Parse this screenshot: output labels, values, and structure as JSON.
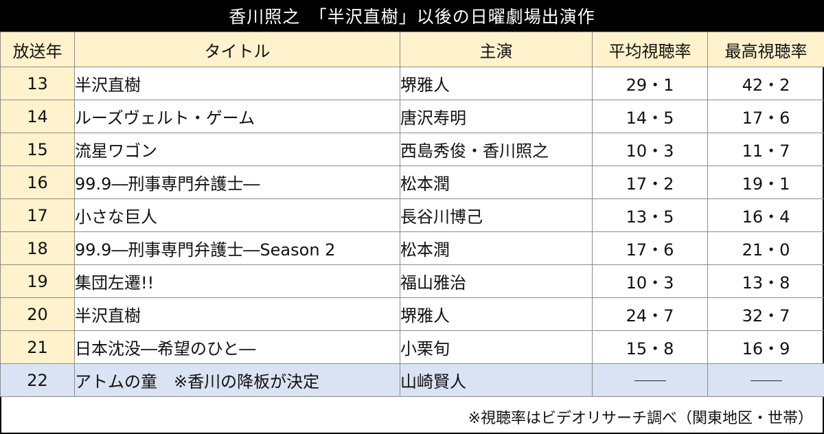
{
  "header": {
    "title": "香川照之　「半沢直樹」以後の日曜劇場出演作"
  },
  "table": {
    "columns": [
      "放送年",
      "タイトル",
      "主演",
      "平均視聴率",
      "最高視聴率"
    ],
    "rows": [
      {
        "year": "13",
        "title": "半沢直樹",
        "lead": "堺雅人",
        "avg": "29・1",
        "max": "42・2"
      },
      {
        "year": "14",
        "title": "ルーズヴェルト・ゲーム",
        "lead": "唐沢寿明",
        "avg": "14・5",
        "max": "17・6"
      },
      {
        "year": "15",
        "title": "流星ワゴン",
        "lead": "西島秀俊・香川照之",
        "avg": "10・3",
        "max": "11・7"
      },
      {
        "year": "16",
        "title": "99.9―刑事専門弁護士―",
        "lead": "松本潤",
        "avg": "17・2",
        "max": "19・1"
      },
      {
        "year": "17",
        "title": "小さな巨人",
        "lead": "長谷川博己",
        "avg": "13・5",
        "max": "16・4"
      },
      {
        "year": "18",
        "title": "99.9―刑事専門弁護士―Season 2",
        "lead": "松本潤",
        "avg": "17・6",
        "max": "21・0"
      },
      {
        "year": "19",
        "title": "集団左遷!!",
        "lead": "福山雅治",
        "avg": "10・3",
        "max": "13・8"
      },
      {
        "year": "20",
        "title": "半沢直樹",
        "lead": "堺雅人",
        "avg": "24・7",
        "max": "32・7"
      },
      {
        "year": "21",
        "title": "日本沈没―希望のひと―",
        "lead": "小栗旬",
        "avg": "15・8",
        "max": "16・9"
      },
      {
        "year": "22",
        "title": "アトムの童　※香川の降板が決定",
        "lead": "山崎賢人",
        "avg": "",
        "max": ""
      }
    ]
  },
  "footnote": "※視聴率はビデオリサーチ調べ（関東地区・世帯）"
}
